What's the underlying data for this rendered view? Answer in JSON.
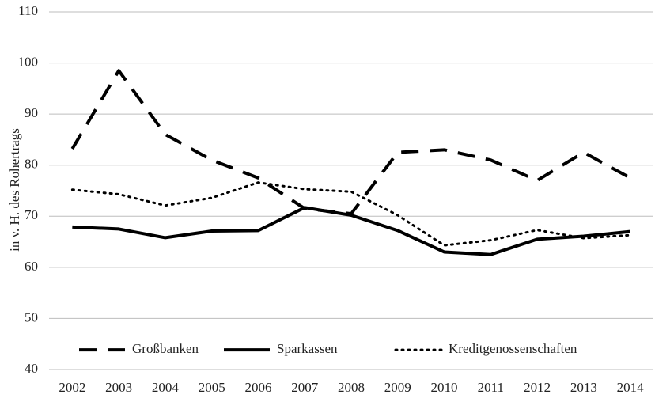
{
  "chart_data": {
    "type": "line",
    "y_label": "in v. H. des Rohertrags",
    "categories": [
      "2002",
      "2003",
      "2004",
      "2005",
      "2006",
      "2007",
      "2008",
      "2009",
      "2010",
      "2011",
      "2012",
      "2013",
      "2014"
    ],
    "series": [
      {
        "name": "Großbanken",
        "color": "#000000",
        "dash": "dashed",
        "values": [
          83.2,
          98.5,
          86,
          81,
          77.5,
          71.5,
          70.5,
          82.5,
          83,
          81,
          77,
          82.5,
          77.5
        ]
      },
      {
        "name": "Sparkassen",
        "color": "#000000",
        "dash": "solid",
        "values": [
          67.9,
          67.5,
          65.8,
          67.1,
          67.2,
          71.7,
          70.2,
          67.2,
          63.0,
          62.5,
          65.5,
          66.1,
          67.0
        ]
      },
      {
        "name": "Kreditgenossenschaften",
        "color": "#000000",
        "dash": "dotted",
        "values": [
          75.2,
          74.3,
          72.1,
          73.6,
          76.6,
          75.3,
          74.8,
          70.2,
          64.3,
          65.3,
          67.3,
          65.7,
          66.3
        ]
      }
    ],
    "ylim": [
      40,
      110
    ],
    "yticks": [
      40,
      50,
      60,
      70,
      80,
      90,
      100,
      110
    ],
    "grid": true,
    "legend": "bottom"
  }
}
